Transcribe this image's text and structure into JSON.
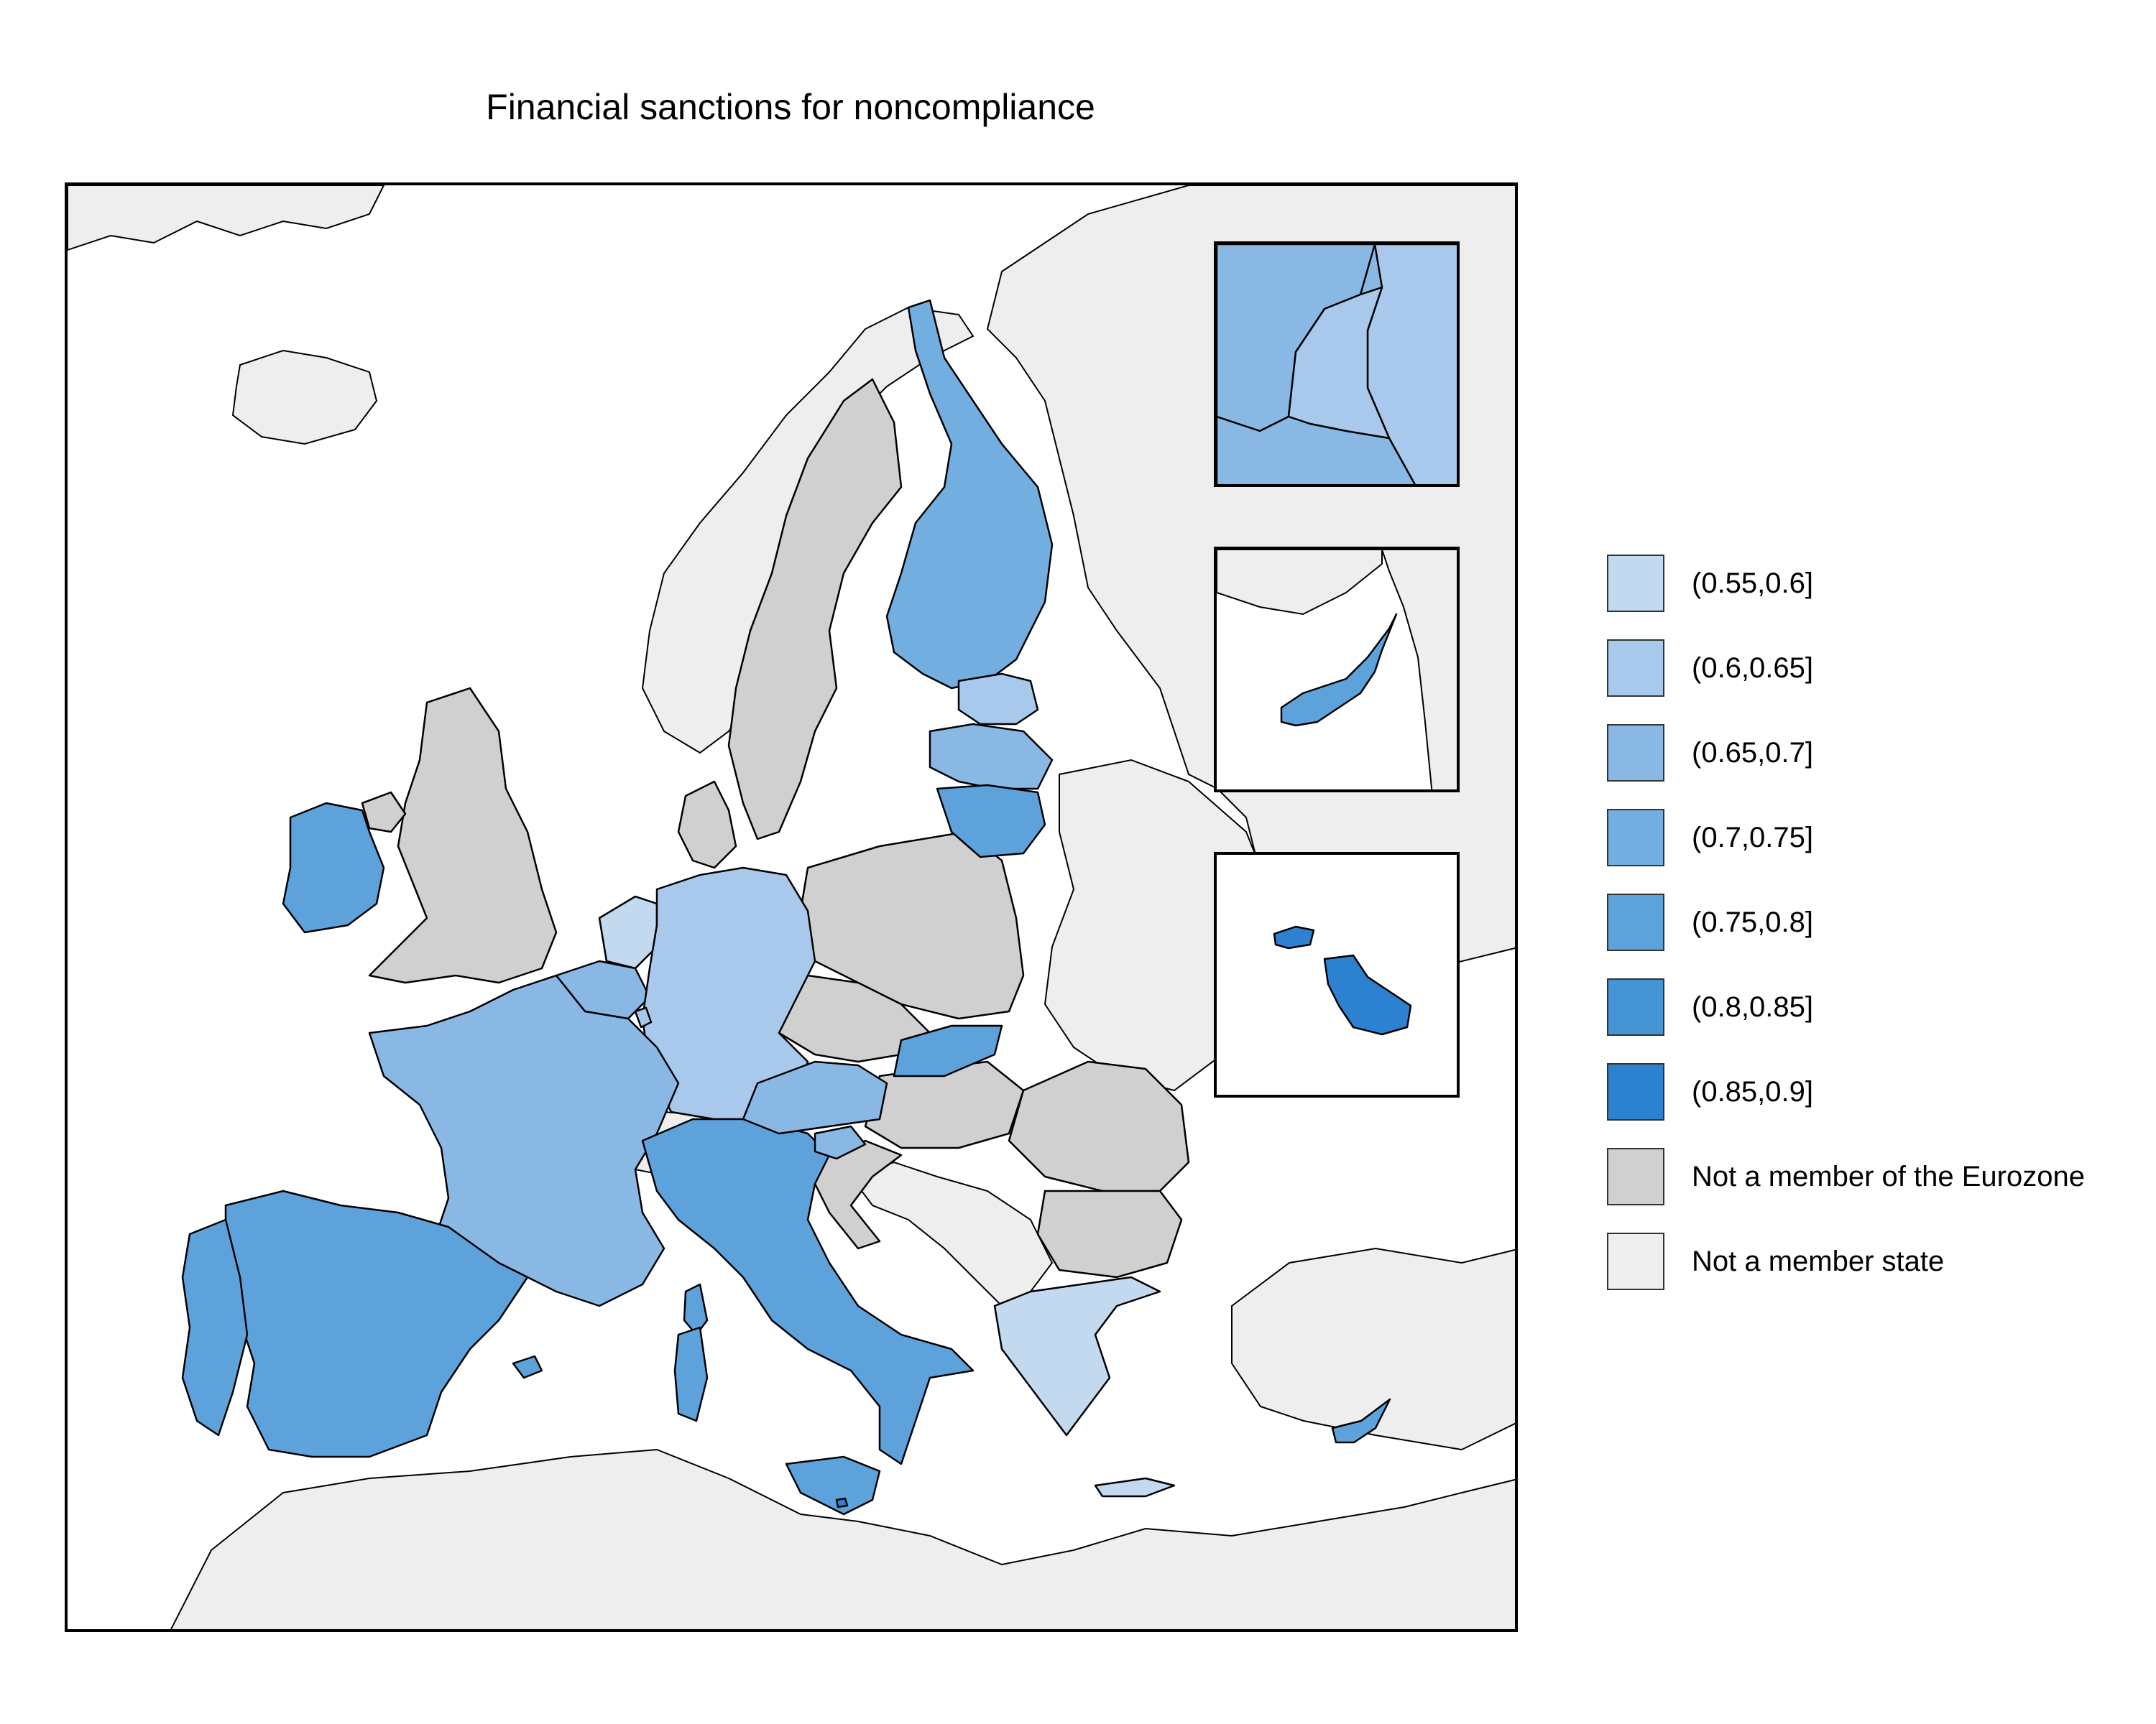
{
  "title": "Financial sanctions for noncompliance",
  "colors": {
    "sea": "#ffffff",
    "non_member": "#eeeeee",
    "not_eurozone": "#d0d0d0",
    "bins": [
      "#c2d9f0",
      "#a8c9ec",
      "#8ab8e4",
      "#73aee0",
      "#5ea2dc",
      "#4594d6",
      "#2c82d0"
    ]
  },
  "legend": {
    "items": [
      {
        "label": "(0.55,0.6]",
        "color": "#c2d9f0"
      },
      {
        "label": "(0.6,0.65]",
        "color": "#a8c9ec"
      },
      {
        "label": "(0.65,0.7]",
        "color": "#8ab8e4"
      },
      {
        "label": "(0.7,0.75]",
        "color": "#73aee0"
      },
      {
        "label": "(0.75,0.8]",
        "color": "#5ea2dc"
      },
      {
        "label": "(0.8,0.85]",
        "color": "#4594d6"
      },
      {
        "label": "(0.85,0.9]",
        "color": "#2c82d0"
      },
      {
        "label": "Not a member of the Eurozone",
        "color": "#d0d0d0"
      },
      {
        "label": "Not a member state",
        "color": "#eeeeee"
      }
    ]
  },
  "regions": {
    "eurozone": [
      {
        "country": "Netherlands",
        "bin": "(0.55,0.6]"
      },
      {
        "country": "Greece",
        "bin": "(0.55,0.6]"
      },
      {
        "country": "Germany",
        "bin": "(0.6,0.65]"
      },
      {
        "country": "Luxembourg",
        "bin": "(0.6,0.65]"
      },
      {
        "country": "Estonia",
        "bin": "(0.6,0.65]"
      },
      {
        "country": "France",
        "bin": "(0.65,0.7]"
      },
      {
        "country": "Belgium",
        "bin": "(0.65,0.7]"
      },
      {
        "country": "Latvia",
        "bin": "(0.65,0.7]"
      },
      {
        "country": "Austria",
        "bin": "(0.65,0.7]"
      },
      {
        "country": "Slovenia",
        "bin": "(0.65,0.7]"
      },
      {
        "country": "Finland",
        "bin": "(0.7,0.75]"
      },
      {
        "country": "Spain",
        "bin": "(0.75,0.8]"
      },
      {
        "country": "Portugal",
        "bin": "(0.75,0.8]"
      },
      {
        "country": "Italy",
        "bin": "(0.75,0.8]"
      },
      {
        "country": "Ireland",
        "bin": "(0.75,0.8]"
      },
      {
        "country": "Slovakia",
        "bin": "(0.75,0.8]"
      },
      {
        "country": "Lithuania",
        "bin": "(0.75,0.8]"
      },
      {
        "country": "Cyprus",
        "bin": "(0.75,0.8]"
      },
      {
        "country": "Malta",
        "bin": "(0.85,0.9]"
      }
    ],
    "not_eurozone": [
      "United Kingdom",
      "Sweden",
      "Denmark",
      "Poland",
      "Czechia",
      "Hungary",
      "Romania",
      "Bulgaria",
      "Croatia"
    ],
    "not_member_state": [
      "Norway",
      "Iceland",
      "Switzerland",
      "Belarus",
      "Ukraine",
      "Russia",
      "Turkey",
      "Balkans",
      "North Africa"
    ]
  }
}
